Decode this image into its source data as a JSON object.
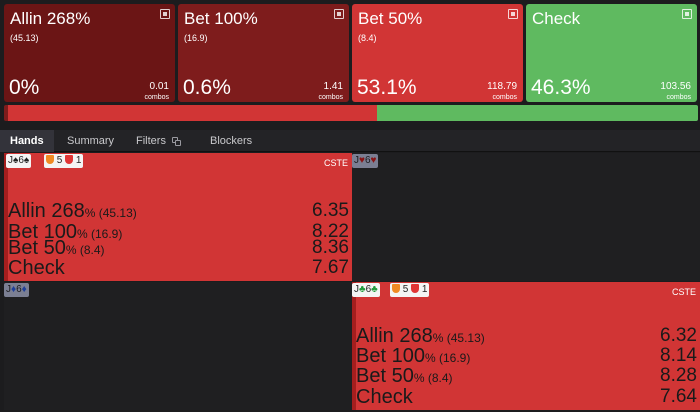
{
  "actions": [
    {
      "name": "Allin 268%",
      "sub": "(45.13)",
      "pct": "0%",
      "combos": "0.01",
      "combos_label": "combos",
      "color": "#6b1515"
    },
    {
      "name": "Bet 100%",
      "sub": "(16.9)",
      "pct": "0.6%",
      "combos": "1.41",
      "combos_label": "combos",
      "color": "#7e1c1c"
    },
    {
      "name": "Bet 50%",
      "sub": "(8.4)",
      "pct": "53.1%",
      "combos": "118.79",
      "combos_label": "combos",
      "color": "#d13535"
    },
    {
      "name": "Check",
      "sub": "",
      "pct": "46.3%",
      "combos": "103.56",
      "combos_label": "combos",
      "color": "#5fba60"
    }
  ],
  "frequency_bar": [
    {
      "action": "Allin 268%",
      "fraction": 0.0,
      "color": "#6b1515"
    },
    {
      "action": "Bet 100%",
      "fraction": 0.006,
      "color": "#7e1c1c"
    },
    {
      "action": "Bet 50%",
      "fraction": 0.531,
      "color": "#d13535"
    },
    {
      "action": "Check",
      "fraction": 0.463,
      "color": "#5fba60"
    }
  ],
  "tabs": {
    "hands": "Hands",
    "summary": "Summary",
    "filters": "Filters",
    "blockers": "Blockers"
  },
  "hands": [
    {
      "hand": "J♠6♠",
      "rank1": "J",
      "suit1": "♠",
      "rank2": "6",
      "suit2": "♠",
      "suit_color": "#222222",
      "badge_a": "5",
      "badge_b": "1",
      "tag": "CSTE",
      "rows": [
        {
          "label": "Allin 268",
          "pct": "%",
          "size": "(45.13)",
          "ev": "6.35"
        },
        {
          "label": "Bet 100",
          "pct": "%",
          "size": "(16.9)",
          "ev": "8.22"
        },
        {
          "label": "Bet 50",
          "pct": "%",
          "size": "(8.4)",
          "ev": "8.36"
        },
        {
          "label": "Check",
          "pct": "",
          "size": "",
          "ev": "7.67"
        }
      ]
    },
    {
      "hand": "J♥6♥",
      "rank1": "J",
      "suit1": "♥",
      "rank2": "6",
      "suit2": "♥",
      "suit_color": "#b81c1c"
    },
    {
      "hand": "J♦6♦",
      "rank1": "J",
      "suit1": "♦",
      "rank2": "6",
      "suit2": "♦",
      "suit_color": "#2a4fb8"
    },
    {
      "hand": "J♣6♣",
      "rank1": "J",
      "suit1": "♣",
      "rank2": "6",
      "suit2": "♣",
      "suit_color": "#1f9a3a",
      "badge_a": "5",
      "badge_b": "1",
      "tag": "CSTE",
      "rows": [
        {
          "label": "Allin 268",
          "pct": "%",
          "size": "(45.13)",
          "ev": "6.32"
        },
        {
          "label": "Bet 100",
          "pct": "%",
          "size": "(16.9)",
          "ev": "8.14"
        },
        {
          "label": "Bet 50",
          "pct": "%",
          "size": "(8.4)",
          "ev": "8.28"
        },
        {
          "label": "Check",
          "pct": "",
          "size": "",
          "ev": "7.64"
        }
      ]
    }
  ]
}
